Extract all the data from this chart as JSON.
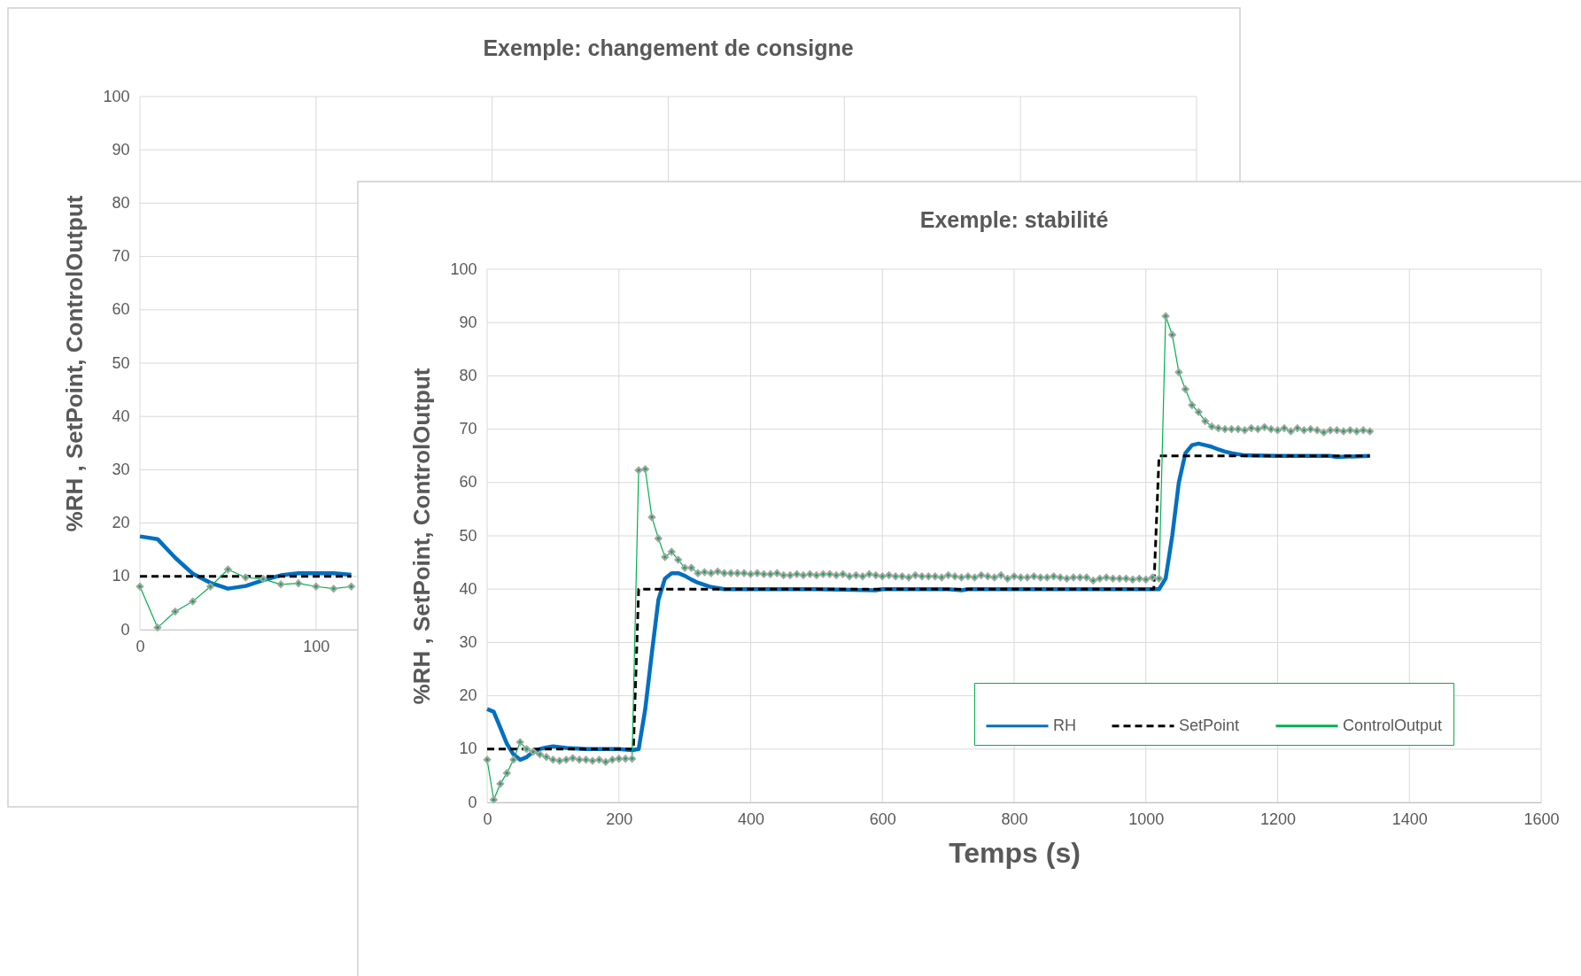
{
  "chart_data": [
    {
      "type": "line",
      "title": "Exemple: changement de consigne",
      "ylabel": "%RH ,  SetPoint, ControlOutput",
      "xlim": [
        0,
        600
      ],
      "xticks": [
        0,
        100,
        {
          "value": 200,
          "label": null
        },
        {
          "value": 300,
          "label": null
        },
        {
          "value": 400,
          "label": null
        },
        {
          "value": 500,
          "label": null
        },
        {
          "value": 600,
          "label": null
        }
      ],
      "ylim": [
        0,
        100
      ],
      "yticks": [
        0,
        10,
        20,
        30,
        40,
        50,
        60,
        70,
        80,
        90,
        100
      ],
      "grid": true,
      "legend": false,
      "series": [
        {
          "color": "#0070c0",
          "line_style": "solid",
          "marker": "none",
          "x": [
            0,
            10,
            20,
            30,
            40,
            50,
            60,
            70,
            80,
            90,
            100,
            110,
            120
          ],
          "values": [
            17.5,
            17,
            13.5,
            10.5,
            8.8,
            7.7,
            8.2,
            9.3,
            10.2,
            10.6,
            10.6,
            10.6,
            10.3
          ]
        },
        {
          "color": "#000000",
          "line_style": "dashed",
          "marker": "none",
          "x": [
            0,
            120
          ],
          "values": [
            10,
            10
          ]
        },
        {
          "color": "#00b050",
          "line_style": "solid",
          "marker": "diamond",
          "x": [
            0,
            10,
            20,
            30,
            40,
            50,
            60,
            70,
            80,
            90,
            100,
            110,
            120
          ],
          "values": [
            8.1,
            0.4,
            3.4,
            5.3,
            8.1,
            11.3,
            9.8,
            9.5,
            8.5,
            8.7,
            8.1,
            7.7,
            8.1
          ]
        }
      ]
    },
    {
      "type": "line",
      "title": "Exemple: stabilité",
      "xlabel": "Temps (s)",
      "ylabel": "%RH ,  SetPoint, ControlOutput",
      "xlim": [
        0,
        1600
      ],
      "xticks": [
        0,
        200,
        400,
        600,
        800,
        1000,
        1200,
        1400,
        1600
      ],
      "ylim": [
        0,
        100
      ],
      "yticks": [
        0,
        10,
        20,
        30,
        40,
        50,
        60,
        70,
        80,
        90,
        100
      ],
      "grid": true,
      "legend": "bottom right",
      "x": [
        0,
        10,
        20,
        30,
        40,
        50,
        60,
        70,
        80,
        90,
        100,
        110,
        120,
        130,
        140,
        150,
        160,
        170,
        180,
        190,
        200,
        210,
        220,
        230,
        240,
        250,
        260,
        270,
        280,
        290,
        300,
        310,
        320,
        330,
        340,
        350,
        360,
        370,
        380,
        390,
        400,
        410,
        420,
        430,
        440,
        450,
        460,
        470,
        480,
        490,
        500,
        510,
        520,
        530,
        540,
        550,
        560,
        570,
        580,
        590,
        600,
        610,
        620,
        630,
        640,
        650,
        660,
        670,
        680,
        690,
        700,
        710,
        720,
        730,
        740,
        750,
        760,
        770,
        780,
        790,
        800,
        810,
        820,
        830,
        840,
        850,
        860,
        870,
        880,
        890,
        900,
        910,
        920,
        930,
        940,
        950,
        960,
        970,
        980,
        990,
        1000,
        1010,
        1020,
        1030,
        1040,
        1050,
        1060,
        1070,
        1080,
        1090,
        1100,
        1110,
        1120,
        1130,
        1140,
        1150,
        1160,
        1170,
        1180,
        1190,
        1200,
        1210,
        1220,
        1230,
        1240,
        1250,
        1260,
        1270,
        1280,
        1290,
        1300,
        1310,
        1320,
        1330,
        1340
      ],
      "series": [
        {
          "name": "RH",
          "color": "#0070c0",
          "line_style": "solid",
          "marker": "none",
          "x": [
            0,
            10,
            20,
            30,
            40,
            50,
            60,
            70,
            80,
            90,
            100,
            120,
            150,
            200,
            220,
            230,
            240,
            250,
            260,
            270,
            280,
            290,
            300,
            310,
            320,
            330,
            340,
            350,
            360,
            500,
            590,
            600,
            700,
            720,
            730,
            800,
            1010,
            1020,
            1030,
            1040,
            1050,
            1060,
            1070,
            1080,
            1090,
            1100,
            1110,
            1120,
            1130,
            1140,
            1150,
            1200,
            1280,
            1290,
            1340
          ],
          "values": [
            17.5,
            17,
            14,
            11,
            9,
            8,
            8.5,
            9.5,
            10,
            10.3,
            10.5,
            10.2,
            10,
            10,
            9.8,
            10,
            17.5,
            28,
            38,
            42,
            43,
            43,
            42.5,
            41.8,
            41.2,
            40.8,
            40.4,
            40.2,
            40,
            40,
            39.8,
            40,
            40,
            39.8,
            40,
            40,
            40,
            40,
            42,
            50,
            60,
            65.5,
            67,
            67.3,
            67,
            66.7,
            66.2,
            65.8,
            65.5,
            65.3,
            65.1,
            65,
            65,
            64.8,
            65
          ]
        },
        {
          "name": "SetPoint",
          "color": "#000000",
          "line_style": "dashed",
          "marker": "none",
          "x": [
            0,
            222,
            230,
            1012,
            1020,
            1340
          ],
          "values": [
            10,
            10,
            40,
            40,
            65,
            65
          ]
        },
        {
          "name": "ControlOutput",
          "color": "#00b050",
          "line_style": "solid",
          "marker": "diamond",
          "values": [
            8,
            0.5,
            3.5,
            5.5,
            8,
            11.3,
            10,
            9.5,
            9,
            8.5,
            8,
            7.8,
            8,
            8.3,
            8,
            8,
            7.8,
            8,
            7.6,
            8,
            8.2,
            8.2,
            8.2,
            62.3,
            62.5,
            53.5,
            49.5,
            46,
            47,
            45.5,
            44,
            44,
            43,
            43.2,
            43,
            43.3,
            43,
            43,
            43,
            43,
            42.8,
            43,
            42.8,
            42.8,
            43,
            42.6,
            42.6,
            42.8,
            42.6,
            42.8,
            42.6,
            42.8,
            42.8,
            42.6,
            42.8,
            42.4,
            42.6,
            42.4,
            42.8,
            42.6,
            42.4,
            42.6,
            42.4,
            42.4,
            42.2,
            42.6,
            42.4,
            42.4,
            42.4,
            42.2,
            42.6,
            42.4,
            42.2,
            42.4,
            42.2,
            42.6,
            42.4,
            42.2,
            42.6,
            42,
            42.4,
            42.2,
            42.2,
            42.4,
            42.2,
            42.2,
            42.4,
            42.2,
            42,
            42.2,
            42.2,
            42.2,
            41.6,
            42,
            42.2,
            42,
            42,
            42,
            41.8,
            42,
            41.8,
            42.2,
            42,
            91.2,
            87.7,
            80.7,
            77.5,
            74.5,
            73.2,
            71.5,
            70.5,
            70.2,
            70,
            70,
            70,
            69.8,
            70.2,
            70,
            70.4,
            70,
            69.8,
            70.2,
            69.6,
            70.2,
            69.8,
            70,
            69.8,
            69.4,
            69.8,
            69.8,
            69.6,
            69.8,
            69.6,
            69.8,
            69.6
          ]
        }
      ]
    }
  ]
}
